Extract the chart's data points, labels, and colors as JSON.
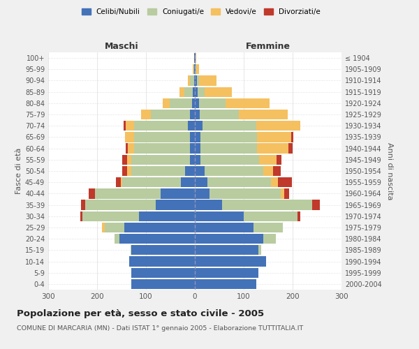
{
  "age_groups": [
    "0-4",
    "5-9",
    "10-14",
    "15-19",
    "20-24",
    "25-29",
    "30-34",
    "35-39",
    "40-44",
    "45-49",
    "50-54",
    "55-59",
    "60-64",
    "65-69",
    "70-74",
    "75-79",
    "80-84",
    "85-89",
    "90-94",
    "95-99",
    "100+"
  ],
  "birth_years": [
    "2000-2004",
    "1995-1999",
    "1990-1994",
    "1985-1989",
    "1980-1984",
    "1975-1979",
    "1970-1974",
    "1965-1969",
    "1960-1964",
    "1955-1959",
    "1950-1954",
    "1945-1949",
    "1940-1944",
    "1935-1939",
    "1930-1934",
    "1925-1929",
    "1920-1924",
    "1915-1919",
    "1910-1914",
    "1905-1909",
    "≤ 1904"
  ],
  "males": {
    "celibi": [
      130,
      130,
      135,
      130,
      155,
      145,
      115,
      80,
      70,
      28,
      20,
      10,
      10,
      10,
      14,
      10,
      6,
      4,
      2,
      1,
      1
    ],
    "coniugati": [
      0,
      0,
      0,
      2,
      10,
      40,
      115,
      145,
      135,
      120,
      110,
      120,
      115,
      115,
      110,
      80,
      45,
      18,
      8,
      2,
      1
    ],
    "vedovi": [
      0,
      0,
      0,
      0,
      0,
      5,
      0,
      0,
      0,
      4,
      8,
      8,
      12,
      18,
      18,
      20,
      15,
      10,
      5,
      1,
      0
    ],
    "divorziati": [
      0,
      0,
      0,
      0,
      0,
      0,
      4,
      8,
      12,
      10,
      10,
      10,
      4,
      0,
      4,
      0,
      0,
      0,
      0,
      0,
      0
    ]
  },
  "females": {
    "nubili": [
      125,
      130,
      145,
      130,
      140,
      120,
      100,
      55,
      30,
      25,
      20,
      12,
      12,
      12,
      15,
      10,
      8,
      5,
      4,
      1,
      1
    ],
    "coniugate": [
      0,
      0,
      0,
      5,
      25,
      60,
      110,
      185,
      145,
      130,
      120,
      120,
      115,
      115,
      110,
      80,
      55,
      15,
      5,
      2,
      0
    ],
    "vedove": [
      0,
      0,
      0,
      0,
      0,
      0,
      0,
      0,
      8,
      15,
      20,
      35,
      65,
      70,
      90,
      100,
      90,
      55,
      35,
      5,
      2
    ],
    "divorziate": [
      0,
      0,
      0,
      0,
      0,
      0,
      5,
      15,
      10,
      28,
      15,
      10,
      8,
      4,
      0,
      0,
      0,
      0,
      0,
      0,
      0
    ]
  },
  "colors": {
    "celibi_nubili": "#4472b8",
    "coniugati_e": "#b8cca0",
    "vedovi_e": "#f5c060",
    "divorziati_e": "#c0392b"
  },
  "title": "Popolazione per età, sesso e stato civile - 2005",
  "subtitle": "COMUNE DI MARCARIA (MN) - Dati ISTAT 1° gennaio 2005 - Elaborazione TUTTITALIA.IT",
  "xlabel_left": "Maschi",
  "xlabel_right": "Femmine",
  "ylabel_left": "Fasce di età",
  "ylabel_right": "Anni di nascita",
  "xlim": 300,
  "background_color": "#f0f0f0",
  "plot_background": "#ffffff",
  "grid_color": "#cccccc"
}
